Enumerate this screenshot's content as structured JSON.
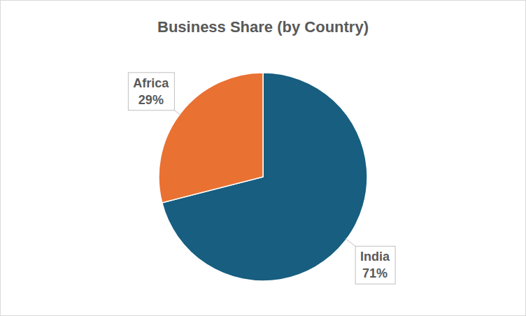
{
  "chart_data": {
    "type": "pie",
    "title": "Business Share (by Country)",
    "categories": [
      "India",
      "Africa"
    ],
    "values": [
      71,
      29
    ],
    "value_labels": [
      "71%",
      "29%"
    ],
    "colors": [
      "#175e80",
      "#e97132"
    ],
    "data_labels": true
  }
}
